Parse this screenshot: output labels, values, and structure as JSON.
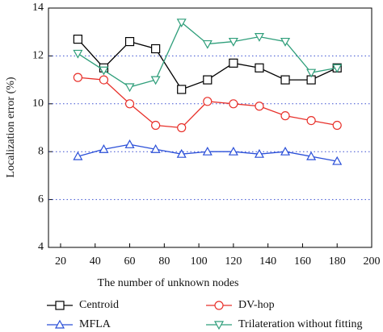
{
  "chart_data": {
    "type": "line",
    "xlabel": "The number of unknown nodes",
    "ylabel": "Localization error (%)",
    "x": [
      30,
      45,
      60,
      75,
      90,
      105,
      120,
      135,
      150,
      165,
      180
    ],
    "xlim": [
      13,
      200
    ],
    "xticks": [
      20,
      40,
      60,
      80,
      100,
      120,
      140,
      160,
      180,
      200
    ],
    "ylim": [
      4,
      14
    ],
    "yticks": [
      4,
      6,
      8,
      10,
      12,
      14
    ],
    "grid": true,
    "series": [
      {
        "name": "Centroid",
        "color": "#000000",
        "marker": "square",
        "values": [
          12.7,
          11.5,
          12.6,
          12.3,
          10.6,
          11.0,
          11.7,
          11.5,
          11.0,
          11.0,
          11.5
        ]
      },
      {
        "name": "DV-hop",
        "color": "#e8302a",
        "marker": "circle",
        "values": [
          11.1,
          11.0,
          10.0,
          9.1,
          9.0,
          10.1,
          10.0,
          9.9,
          9.5,
          9.3,
          9.1
        ]
      },
      {
        "name": "MFLA",
        "color": "#2a4fd8",
        "marker": "triangle-up",
        "values": [
          7.8,
          8.1,
          8.3,
          8.1,
          7.9,
          8.0,
          8.0,
          7.9,
          8.0,
          7.8,
          7.6
        ]
      },
      {
        "name": "Trilateration without fitting",
        "color": "#2e9e7a",
        "marker": "triangle-down",
        "values": [
          12.1,
          11.4,
          10.7,
          11.0,
          13.4,
          12.5,
          12.6,
          12.8,
          12.6,
          11.3,
          11.5
        ]
      }
    ]
  }
}
